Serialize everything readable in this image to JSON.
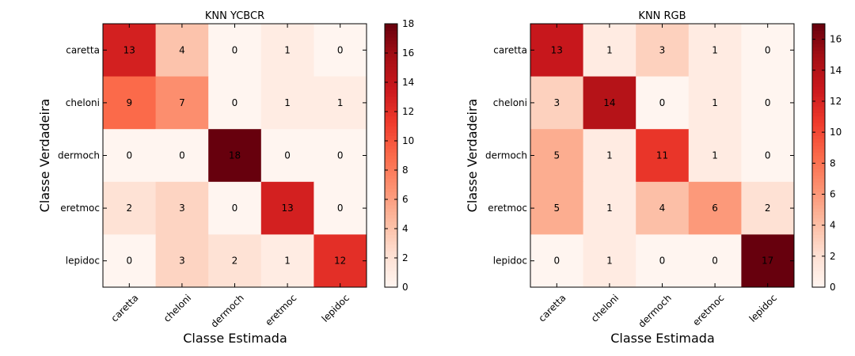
{
  "chart_data": [
    {
      "type": "heatmap",
      "title": "KNN YCBCR",
      "xlabel": "Classe Estimada",
      "ylabel": "Classe Verdadeira",
      "x_categories": [
        "caretta",
        "cheloni",
        "dermoch",
        "eretmoc",
        "lepidoc"
      ],
      "y_categories": [
        "caretta",
        "cheloni",
        "dermoch",
        "eretmoc",
        "lepidoc"
      ],
      "values": [
        [
          13,
          4,
          0,
          1,
          0
        ],
        [
          9,
          7,
          0,
          1,
          1
        ],
        [
          0,
          0,
          18,
          0,
          0
        ],
        [
          2,
          3,
          0,
          13,
          0
        ],
        [
          0,
          3,
          2,
          1,
          12
        ]
      ],
      "colormap": "Reds",
      "vmin": 0,
      "vmax": 18,
      "colorbar_ticks": [
        0,
        2,
        4,
        6,
        8,
        10,
        12,
        14,
        16,
        18
      ]
    },
    {
      "type": "heatmap",
      "title": "KNN RGB",
      "xlabel": "Classe Estimada",
      "ylabel": "Classe Verdadeira",
      "x_categories": [
        "caretta",
        "cheloni",
        "dermoch",
        "eretmoc",
        "lepidoc"
      ],
      "y_categories": [
        "caretta",
        "cheloni",
        "dermoch",
        "eretmoc",
        "lepidoc"
      ],
      "values": [
        [
          13,
          1,
          3,
          1,
          0
        ],
        [
          3,
          14,
          0,
          1,
          0
        ],
        [
          5,
          1,
          11,
          1,
          0
        ],
        [
          5,
          1,
          4,
          6,
          2
        ],
        [
          0,
          1,
          0,
          0,
          17
        ]
      ],
      "colormap": "Reds",
      "vmin": 0,
      "vmax": 17,
      "colorbar_ticks": [
        0,
        2,
        4,
        6,
        8,
        10,
        12,
        14,
        16
      ]
    }
  ]
}
